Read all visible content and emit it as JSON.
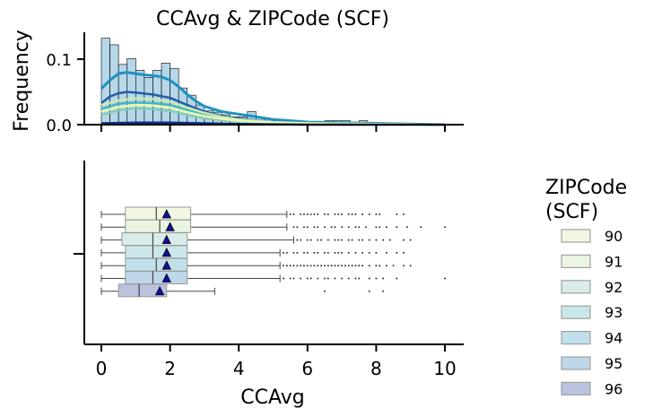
{
  "chart_data": [
    {
      "type": "histogram",
      "title": "CCAvg & ZIPCode (SCF)",
      "xlabel": "",
      "ylabel": "Frequency",
      "xlim": [
        -0.5,
        10.5
      ],
      "ylim": [
        0,
        0.14
      ],
      "x_ticks": [
        0,
        2,
        4,
        6,
        8,
        10
      ],
      "y_ticks": [
        0.0,
        0.1
      ],
      "y_tick_labels": [
        "0.0",
        "0.1"
      ],
      "bin_width": 0.25,
      "series": [
        {
          "name": "94",
          "color": "#1d91c0",
          "bins_x": [
            0,
            0.25,
            0.5,
            0.75,
            1,
            1.25,
            1.5,
            1.75,
            2,
            2.25,
            2.5,
            2.75,
            3,
            3.25,
            3.5,
            3.75,
            4,
            4.25,
            4.5,
            4.75,
            5,
            5.25,
            5.5,
            6.5,
            6.75,
            7,
            7.25,
            7.5
          ],
          "bins_y": [
            0.132,
            0.122,
            0.092,
            0.101,
            0.083,
            0.072,
            0.083,
            0.094,
            0.086,
            0.056,
            0.045,
            0.03,
            0.021,
            0.019,
            0.015,
            0.012,
            0.012,
            0.02,
            0.011,
            0.008,
            0.006,
            0.004,
            0.003,
            0.006,
            0.006,
            0.006,
            0.002,
            0.006
          ],
          "kde_x": [
            0,
            0.25,
            0.5,
            0.75,
            1,
            1.25,
            1.5,
            1.75,
            2,
            2.25,
            2.5,
            2.75,
            3,
            3.5,
            4,
            4.5,
            5,
            5.5,
            6,
            7,
            8,
            9,
            10
          ],
          "kde_y": [
            0.055,
            0.068,
            0.078,
            0.08,
            0.078,
            0.076,
            0.075,
            0.073,
            0.068,
            0.058,
            0.046,
            0.036,
            0.028,
            0.02,
            0.016,
            0.012,
            0.008,
            0.006,
            0.004,
            0.003,
            0.002,
            0.001,
            0.0
          ]
        },
        {
          "name": "95",
          "color": "#225ea8",
          "kde_x": [
            0,
            0.25,
            0.5,
            0.75,
            1,
            1.5,
            2,
            2.5,
            3,
            3.5,
            4,
            5,
            6,
            8,
            10
          ],
          "kde_y": [
            0.033,
            0.043,
            0.048,
            0.05,
            0.049,
            0.046,
            0.041,
            0.03,
            0.02,
            0.013,
            0.009,
            0.004,
            0.002,
            0.001,
            0.0
          ]
        },
        {
          "name": "93",
          "color": "#41b6c4",
          "kde_x": [
            0,
            0.5,
            1,
            1.5,
            2,
            2.5,
            3,
            3.5,
            4,
            5,
            6,
            8,
            10
          ],
          "kde_y": [
            0.024,
            0.032,
            0.034,
            0.033,
            0.03,
            0.022,
            0.015,
            0.01,
            0.007,
            0.004,
            0.002,
            0.001,
            0.0
          ]
        },
        {
          "name": "92",
          "color": "#7fcdbb",
          "kde_x": [
            0,
            0.5,
            1,
            1.5,
            2,
            2.5,
            3,
            3.5,
            4,
            5,
            6,
            8,
            10
          ],
          "kde_y": [
            0.015,
            0.022,
            0.025,
            0.024,
            0.021,
            0.015,
            0.01,
            0.007,
            0.005,
            0.003,
            0.002,
            0.001,
            0.0
          ]
        },
        {
          "name": "91",
          "color": "#c7e9b4",
          "kde_x": [
            0,
            0.5,
            1,
            1.5,
            2,
            2.5,
            3,
            3.5,
            4,
            5,
            6,
            8,
            10
          ],
          "kde_y": [
            0.03,
            0.037,
            0.04,
            0.039,
            0.035,
            0.026,
            0.018,
            0.012,
            0.008,
            0.004,
            0.002,
            0.001,
            0.0
          ]
        },
        {
          "name": "90",
          "color": "#edf8b1",
          "kde_x": [
            0,
            0.5,
            1,
            1.5,
            2,
            2.5,
            3,
            3.5,
            4,
            5,
            6,
            8,
            10
          ],
          "kde_y": [
            0.02,
            0.027,
            0.03,
            0.029,
            0.026,
            0.019,
            0.013,
            0.009,
            0.006,
            0.003,
            0.002,
            0.001,
            0.0
          ]
        },
        {
          "name": "96",
          "color": "#0c2c84",
          "kde_x": [
            0,
            1,
            2,
            3,
            4,
            6,
            10
          ],
          "kde_y": [
            0.002,
            0.003,
            0.003,
            0.002,
            0.001,
            0.0,
            0.0
          ]
        }
      ]
    },
    {
      "type": "box",
      "xlabel": "CCAvg",
      "ylabel": "",
      "xlim": [
        -0.5,
        10.5
      ],
      "x_ticks": [
        0,
        2,
        4,
        6,
        8,
        10
      ],
      "x_tick_labels": [
        "0",
        "2",
        "4",
        "6",
        "8",
        "10"
      ],
      "legend_title": "ZIPCode\n(SCF)",
      "legend_position": "right",
      "boxes": [
        {
          "name": "90",
          "color": "#f1f7e3",
          "whisker_low": 0,
          "q1": 0.7,
          "median": 1.6,
          "q3": 2.6,
          "whisker_high": 5.4,
          "mean": 1.9,
          "outliers": [
            5.5,
            5.6,
            5.8,
            5.9,
            6.0,
            6.1,
            6.2,
            6.3,
            6.5,
            6.6,
            6.8,
            6.9,
            7.0,
            7.2,
            7.3,
            7.4,
            7.6,
            7.8,
            8.0,
            8.1,
            8.6,
            8.8
          ]
        },
        {
          "name": "91",
          "color": "#eaf5e1",
          "whisker_low": 0,
          "q1": 0.7,
          "median": 1.7,
          "q3": 2.6,
          "whisker_high": 5.4,
          "mean": 2.0,
          "outliers": [
            5.6,
            5.7,
            5.9,
            6.0,
            6.2,
            6.3,
            6.5,
            6.7,
            6.8,
            7.0,
            7.2,
            7.4,
            7.5,
            7.7,
            8.0,
            8.1,
            8.3,
            8.6,
            8.9,
            9.3,
            10.0
          ]
        },
        {
          "name": "92",
          "color": "#d9ece9",
          "whisker_low": 0,
          "q1": 0.6,
          "median": 1.5,
          "q3": 2.5,
          "whisker_high": 5.6,
          "mean": 1.9,
          "outliers": [
            5.7,
            5.8,
            6.0,
            6.1,
            6.3,
            6.4,
            6.6,
            6.8,
            6.9,
            7.0,
            7.2,
            7.3,
            7.5,
            7.6,
            7.8,
            8.0,
            8.2,
            8.4,
            8.8,
            9.0
          ]
        },
        {
          "name": "93",
          "color": "#cbe6e9",
          "whisker_low": 0,
          "q1": 0.7,
          "median": 1.5,
          "q3": 2.5,
          "whisker_high": 5.2,
          "mean": 1.9,
          "outliers": [
            5.3,
            5.4,
            5.6,
            5.7,
            5.9,
            6.0,
            6.2,
            6.3,
            6.5,
            6.6,
            6.8,
            6.9,
            7.0,
            7.2,
            7.4,
            7.6,
            7.8,
            8.0,
            8.3,
            8.6,
            8.8
          ]
        },
        {
          "name": "94",
          "color": "#c2e0eb",
          "whisker_low": 0,
          "q1": 0.7,
          "median": 1.6,
          "q3": 2.5,
          "whisker_high": 5.2,
          "mean": 1.9,
          "outliers": [
            5.3,
            5.4,
            5.5,
            5.6,
            5.7,
            5.8,
            5.9,
            6.0,
            6.1,
            6.2,
            6.3,
            6.4,
            6.5,
            6.6,
            6.7,
            6.8,
            6.9,
            7.0,
            7.1,
            7.2,
            7.3,
            7.4,
            7.5,
            7.6,
            7.8,
            8.0,
            8.1,
            8.3,
            8.5,
            8.8,
            9.0
          ]
        },
        {
          "name": "95",
          "color": "#bed6e8",
          "whisker_low": 0,
          "q1": 0.7,
          "median": 1.5,
          "q3": 2.5,
          "whisker_high": 5.2,
          "mean": 1.9,
          "outliers": [
            5.3,
            5.5,
            5.6,
            5.8,
            6.0,
            6.1,
            6.3,
            6.5,
            6.6,
            6.8,
            7.0,
            7.2,
            7.4,
            7.5,
            7.8,
            8.0,
            8.2,
            8.6,
            10.0
          ]
        },
        {
          "name": "96",
          "color": "#bcc2de",
          "whisker_low": 0,
          "q1": 0.5,
          "median": 1.1,
          "q3": 1.9,
          "whisker_high": 3.3,
          "mean": 1.7,
          "outliers": [
            6.5,
            7.8,
            8.2
          ]
        }
      ]
    }
  ]
}
